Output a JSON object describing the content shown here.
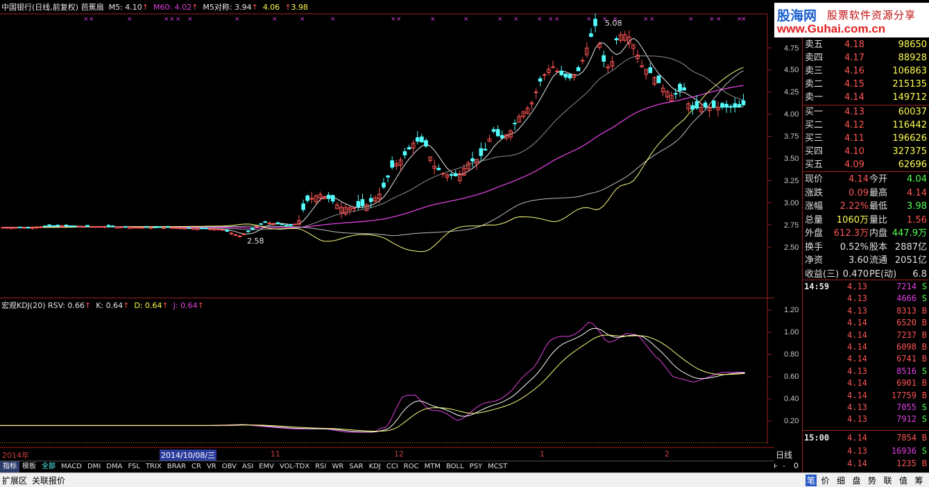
{
  "header": {
    "stock": "中国银行(日线,前复权)",
    "indicator": "芭蕉扇",
    "m5": "M5: 4.10",
    "m60": "M60: 4.02",
    "m5dc": "M5对称: 3.94",
    "v4": "4.06",
    "v5": "3.98",
    "arrow": "↑",
    "colors": {
      "white": "#e8e8e8",
      "magenta": "#e040e0",
      "yellow": "#ffff54"
    }
  },
  "price_labels": {
    "hi": "5.08",
    "lo": "2.58"
  },
  "y_axis_main": [
    "4.75",
    "4.50",
    "4.25",
    "4.00",
    "3.75",
    "3.50",
    "3.25",
    "3.00",
    "2.75",
    "2.50"
  ],
  "kdj_header": {
    "name": "宏观KDJ(20)",
    "rsv": "RSV: 0.66",
    "k": "K: 0.64",
    "d": "D: 0.64",
    "j": "J: 0.64"
  },
  "y_axis_kdj": [
    "1.20",
    "1.00",
    "0.80",
    "0.60",
    "0.40",
    "0.20"
  ],
  "x_axis": {
    "year": "2014年",
    "cursor_date": "2014/10/08/三",
    "m11": "11",
    "m12": "12",
    "m1": "1",
    "m2": "2"
  },
  "period_label": "日线",
  "period_ctrls": [
    "+",
    "-",
    "0"
  ],
  "tabs": [
    "指标",
    "模板",
    "全部",
    "MACD",
    "DMI",
    "DMA",
    "FSL",
    "TRIX",
    "BRAR",
    "CR",
    "VR",
    "OBV",
    "ASI",
    "EMV",
    "VOL-TDX",
    "RSI",
    "WR",
    "SAR",
    "KDJ",
    "CCI",
    "ROC",
    "MTM",
    "BOLL",
    "PSY",
    "MCST"
  ],
  "bottom_left": [
    "扩展区",
    "关联报价"
  ],
  "bottom_tabs": [
    "笔",
    "价",
    "细",
    "盘",
    "势",
    "联",
    "值",
    "筹"
  ],
  "logo": {
    "cn": "股海网",
    "slogan": "股票软件资源分享",
    "url": "www.Guhai.com.cn"
  },
  "order_book": {
    "asks": [
      {
        "label": "卖五",
        "price": "4.18",
        "vol": "98650"
      },
      {
        "label": "卖四",
        "price": "4.17",
        "vol": "88928"
      },
      {
        "label": "卖三",
        "price": "4.16",
        "vol": "106863"
      },
      {
        "label": "卖二",
        "price": "4.15",
        "vol": "215135"
      },
      {
        "label": "卖一",
        "price": "4.14",
        "vol": "149712"
      }
    ],
    "bids": [
      {
        "label": "买一",
        "price": "4.13",
        "vol": "60037"
      },
      {
        "label": "买二",
        "price": "4.12",
        "vol": "116442"
      },
      {
        "label": "买三",
        "price": "4.11",
        "vol": "196626"
      },
      {
        "label": "买四",
        "price": "4.10",
        "vol": "327375"
      },
      {
        "label": "买五",
        "price": "4.09",
        "vol": "62696"
      }
    ]
  },
  "stats": [
    {
      "l1": "现价",
      "v1": "4.14",
      "c1": "#ff5555",
      "l2": "今开",
      "v2": "4.04",
      "c2": "#54ff54"
    },
    {
      "l1": "涨跌",
      "v1": "0.09",
      "c1": "#ff5555",
      "l2": "最高",
      "v2": "4.14",
      "c2": "#ff5555"
    },
    {
      "l1": "涨幅",
      "v1": "2.22%",
      "c1": "#ff5555",
      "l2": "最低",
      "v2": "3.98",
      "c2": "#54ff54"
    },
    {
      "l1": "总量",
      "v1": "1060万",
      "c1": "#ffff54",
      "l2": "量比",
      "v2": "1.56",
      "c2": "#ff5555"
    },
    {
      "l1": "外盘",
      "v1": "612.3万",
      "c1": "#ff5555",
      "l2": "内盘",
      "v2": "447.9万",
      "c2": "#54ff54"
    },
    {
      "l1": "换手",
      "v1": "0.52%",
      "c1": "#e0e0e0",
      "l2": "股本",
      "v2": "2887亿",
      "c2": "#e0e0e0"
    },
    {
      "l1": "净资",
      "v1": "3.60",
      "c1": "#e0e0e0",
      "l2": "流通",
      "v2": "2051亿",
      "c2": "#e0e0e0"
    },
    {
      "l1": "收益(三)",
      "v1": "0.470",
      "c1": "#e0e0e0",
      "l2": "PE(动)",
      "v2": "6.8",
      "c2": "#e0e0e0"
    }
  ],
  "ticks": [
    {
      "time": "14:59",
      "price": "4.13",
      "vol": "7214",
      "side": "S"
    },
    {
      "time": "",
      "price": "4.13",
      "vol": "4666",
      "side": "S"
    },
    {
      "time": "",
      "price": "4.13",
      "vol": "8313",
      "side": "B"
    },
    {
      "time": "",
      "price": "4.14",
      "vol": "6520",
      "side": "B"
    },
    {
      "time": "",
      "price": "4.14",
      "vol": "7237",
      "side": "B"
    },
    {
      "time": "",
      "price": "4.14",
      "vol": "6098",
      "side": "B"
    },
    {
      "time": "",
      "price": "4.14",
      "vol": "6741",
      "side": "B"
    },
    {
      "time": "",
      "price": "4.13",
      "vol": "8516",
      "side": "S"
    },
    {
      "time": "",
      "price": "4.14",
      "vol": "6901",
      "side": "B"
    },
    {
      "time": "",
      "price": "4.14",
      "vol": "17759",
      "side": "B"
    },
    {
      "time": "",
      "price": "4.13",
      "vol": "7055",
      "side": "S"
    },
    {
      "time": "",
      "price": "4.13",
      "vol": "7912",
      "side": "S"
    },
    {
      "time": "15:00",
      "price": "4.14",
      "vol": "7854",
      "side": "B"
    },
    {
      "time": "",
      "price": "4.13",
      "vol": "16936",
      "side": "S"
    },
    {
      "time": "",
      "price": "4.14",
      "vol": "1235",
      "side": "B"
    }
  ]
}
